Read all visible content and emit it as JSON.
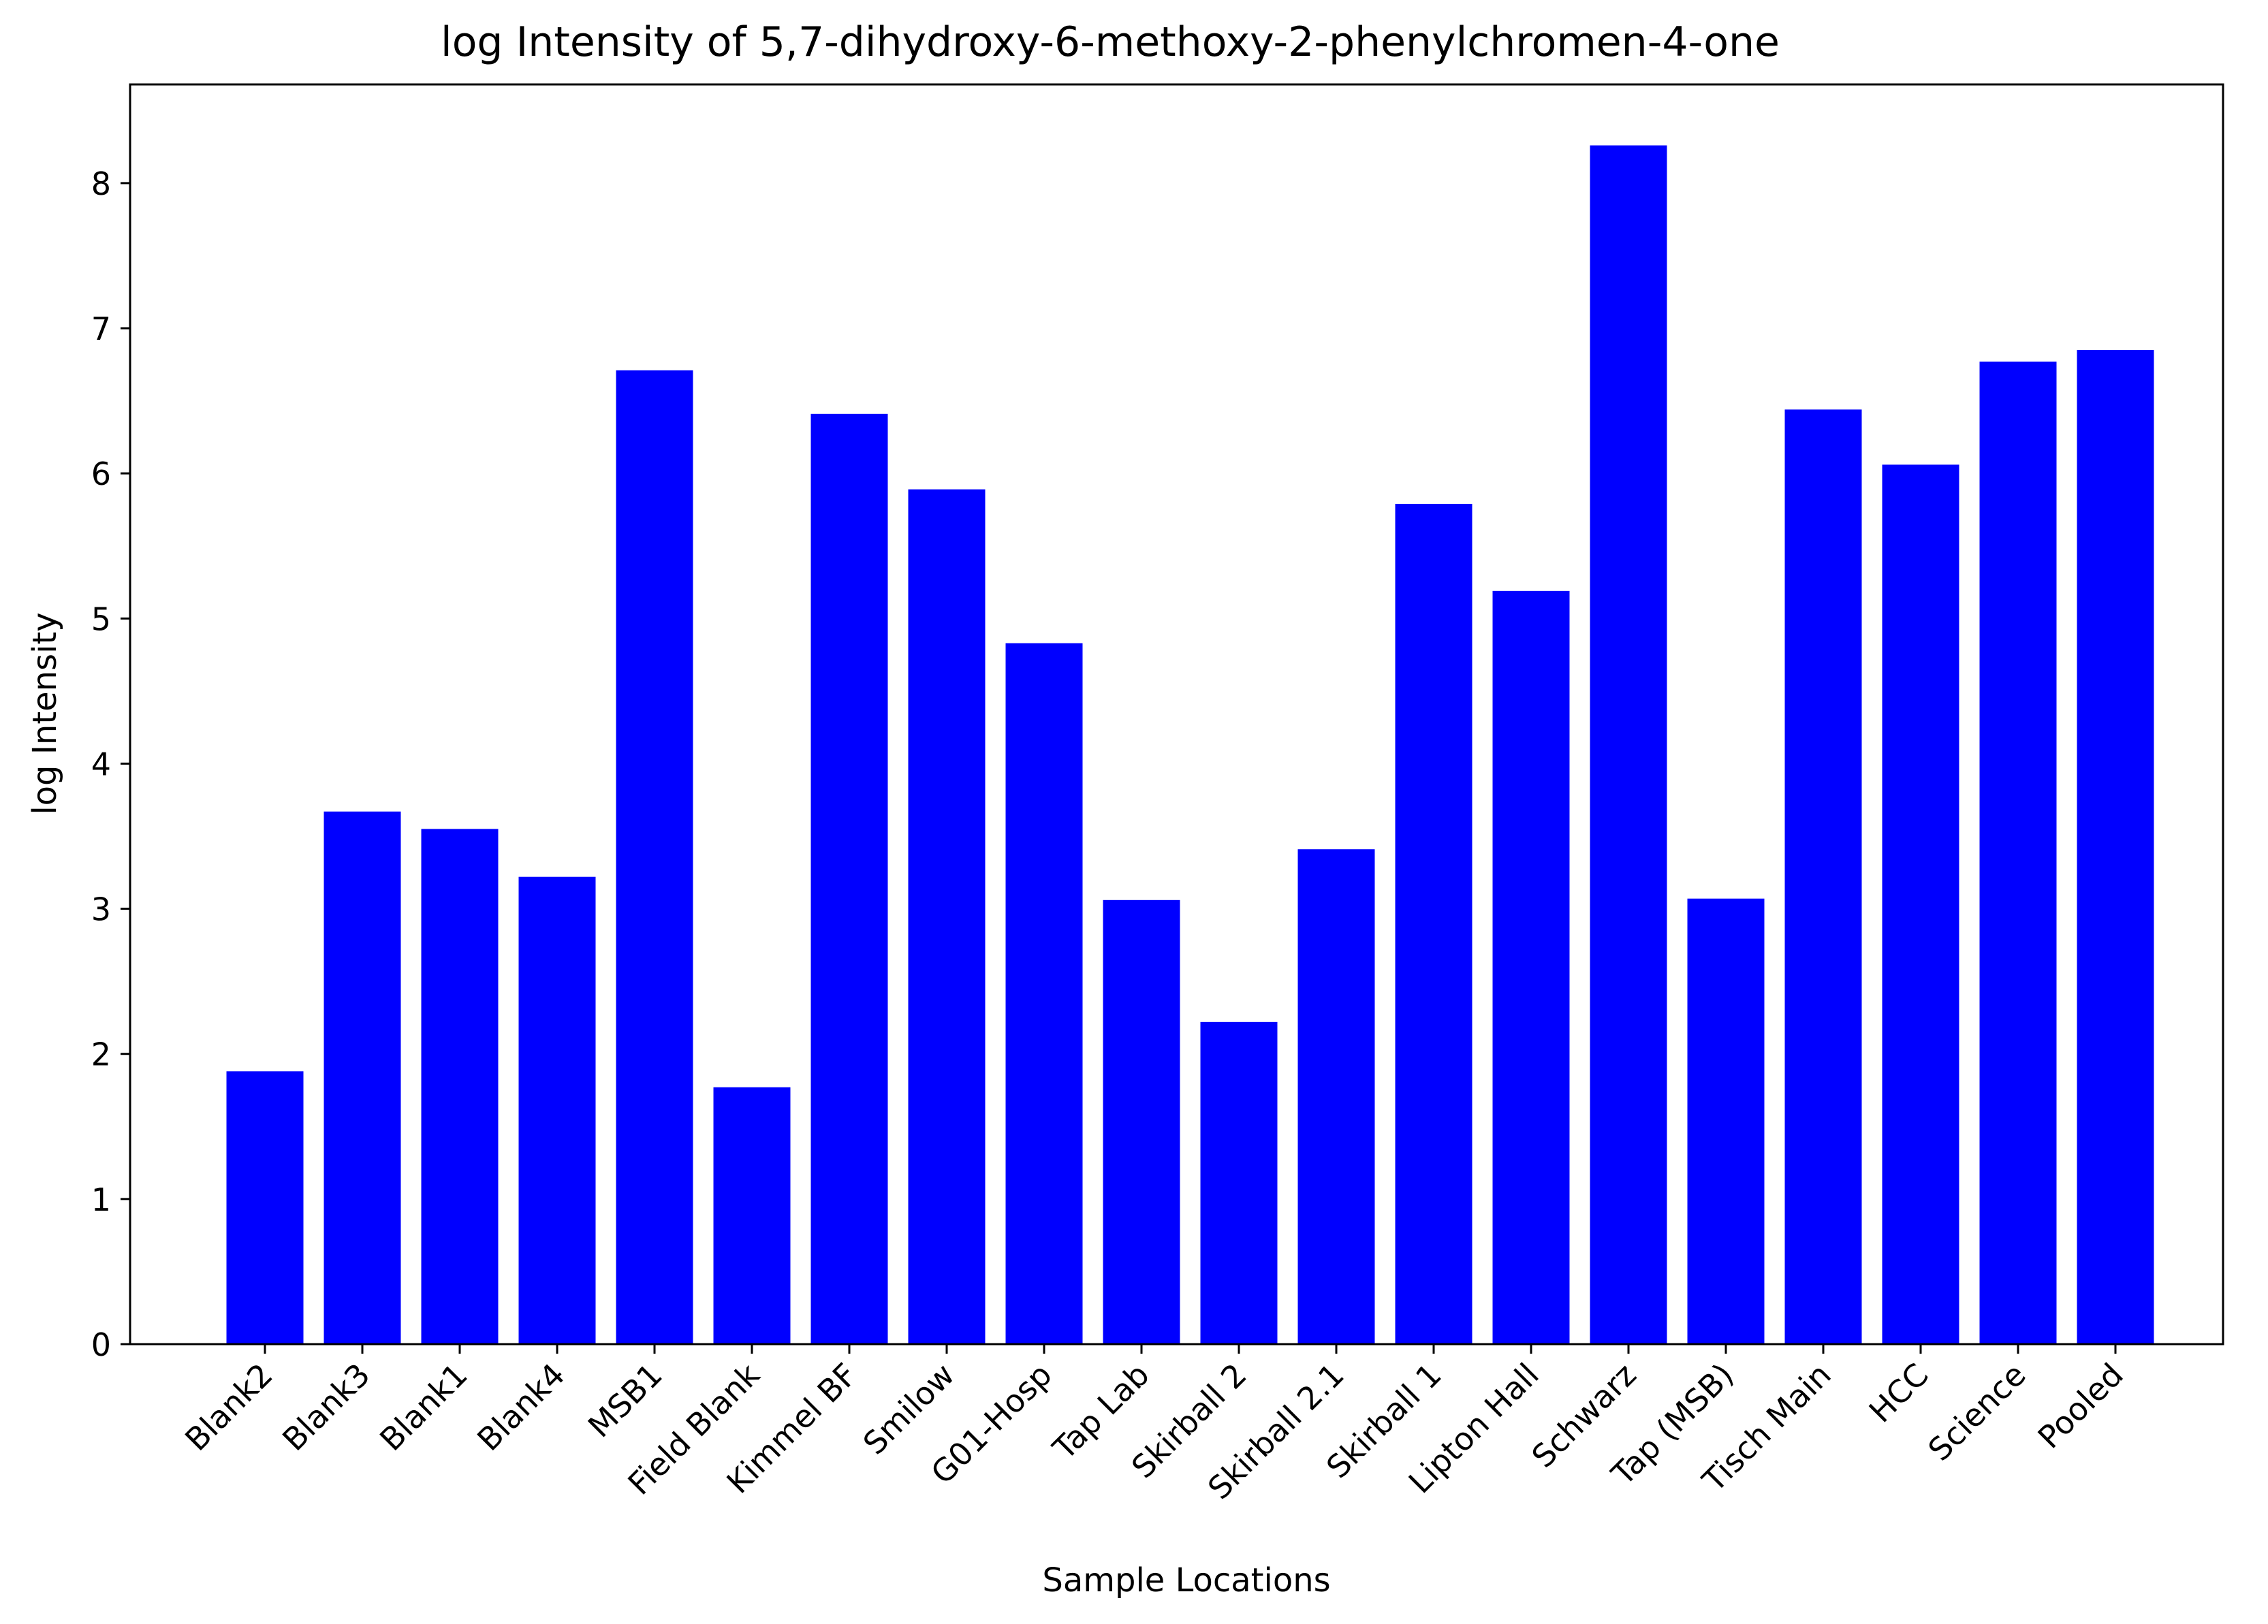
{
  "chart_data": {
    "type": "bar",
    "title": "log Intensity of 5,7-dihydroxy-6-methoxy-2-phenylchromen-4-one",
    "xlabel": "Sample Locations",
    "ylabel": "log Intensity",
    "categories": [
      "Blank2",
      "Blank3",
      "Blank1",
      "Blank4",
      "MSB1",
      "Field Blank",
      "Kimmel BF",
      "Smilow",
      "G01-Hosp",
      "Tap Lab",
      "Skirball 2",
      "Skirball 2.1",
      "Skirball 1",
      "Lipton Hall",
      "Schwarz",
      "Tap (MSB)",
      "Tisch Main",
      "HCC",
      "Science",
      "Pooled"
    ],
    "values": [
      1.88,
      3.67,
      3.55,
      3.22,
      6.71,
      1.77,
      6.41,
      5.89,
      4.83,
      3.06,
      2.22,
      3.41,
      5.79,
      5.19,
      8.26,
      3.07,
      6.44,
      6.06,
      6.77,
      6.85
    ],
    "ylim": [
      0,
      8.68
    ],
    "yticks": [
      0,
      1,
      2,
      3,
      4,
      5,
      6,
      7,
      8
    ],
    "bar_color": "#0000ff",
    "grid": false,
    "legend": "none"
  }
}
